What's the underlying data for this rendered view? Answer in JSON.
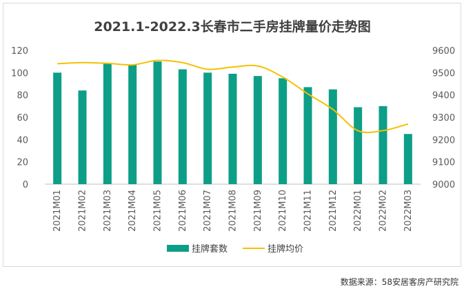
{
  "chart_data": {
    "type": "bar",
    "title": "2021.1-2022.3长春市二手房挂牌量价走势图",
    "categories": [
      "2021M01",
      "2021M02",
      "2021M03",
      "2021M04",
      "2021M05",
      "2021M06",
      "2021M07",
      "2021M08",
      "2021M09",
      "2021M10",
      "2021M11",
      "2021M12",
      "2022M01",
      "2022M02",
      "2022M03"
    ],
    "series": [
      {
        "name": "挂牌套数",
        "type": "bar",
        "axis": "left",
        "color": "#0d9e87",
        "values": [
          100,
          84,
          108,
          107,
          110,
          103,
          100,
          99,
          97,
          95,
          87,
          85,
          69,
          70,
          45
        ]
      },
      {
        "name": "挂牌均价",
        "type": "line",
        "axis": "right",
        "color": "#f5c000",
        "values": [
          9540,
          9545,
          9542,
          9535,
          9555,
          9545,
          9515,
          9525,
          9530,
          9480,
          9405,
          9335,
          9240,
          9240,
          9270
        ]
      }
    ],
    "y_left": {
      "min": 0,
      "max": 120,
      "ticks": [
        0,
        20,
        40,
        60,
        80,
        100,
        120
      ]
    },
    "y_right": {
      "min": 9000,
      "max": 9600,
      "ticks": [
        9000,
        9100,
        9200,
        9300,
        9400,
        9500,
        9600
      ]
    },
    "grid": false,
    "legend_position": "bottom"
  },
  "source_text": "数据来源：58安居客房产研究院"
}
